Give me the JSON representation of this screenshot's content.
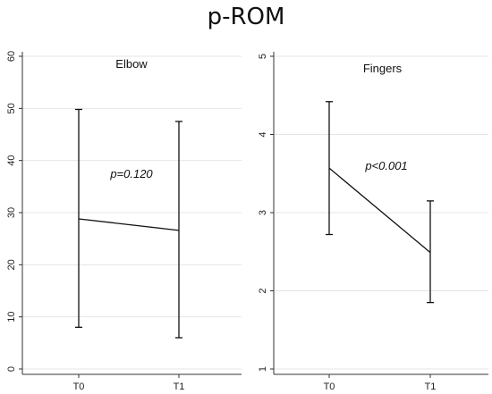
{
  "figure": {
    "title": "p-ROM"
  },
  "chart_data": [
    {
      "type": "line",
      "title": "Elbow",
      "categories": [
        "T0",
        "T1"
      ],
      "ylim": [
        0,
        60
      ],
      "yticks": [
        "0",
        "10",
        "20",
        "30",
        "40",
        "50",
        "60"
      ],
      "series": [
        {
          "values": [
            28.8,
            26.6
          ],
          "error_low": [
            8.0,
            6.0
          ],
          "error_high": [
            49.8,
            47.5
          ]
        }
      ],
      "annotation": "p=0.120",
      "grid": true
    },
    {
      "type": "line",
      "title": "Fingers",
      "categories": [
        "T0",
        "T1"
      ],
      "ylim": [
        1,
        5
      ],
      "yticks": [
        "1",
        "2",
        "3",
        "4",
        "5"
      ],
      "series": [
        {
          "values": [
            3.57,
            2.49
          ],
          "error_low": [
            2.72,
            1.85
          ],
          "error_high": [
            4.42,
            3.15
          ]
        }
      ],
      "annotation": "p<0.001",
      "grid": true
    }
  ],
  "colors": {
    "line": "#111111",
    "grid": "#e4e4e4",
    "axis": "#333333"
  }
}
